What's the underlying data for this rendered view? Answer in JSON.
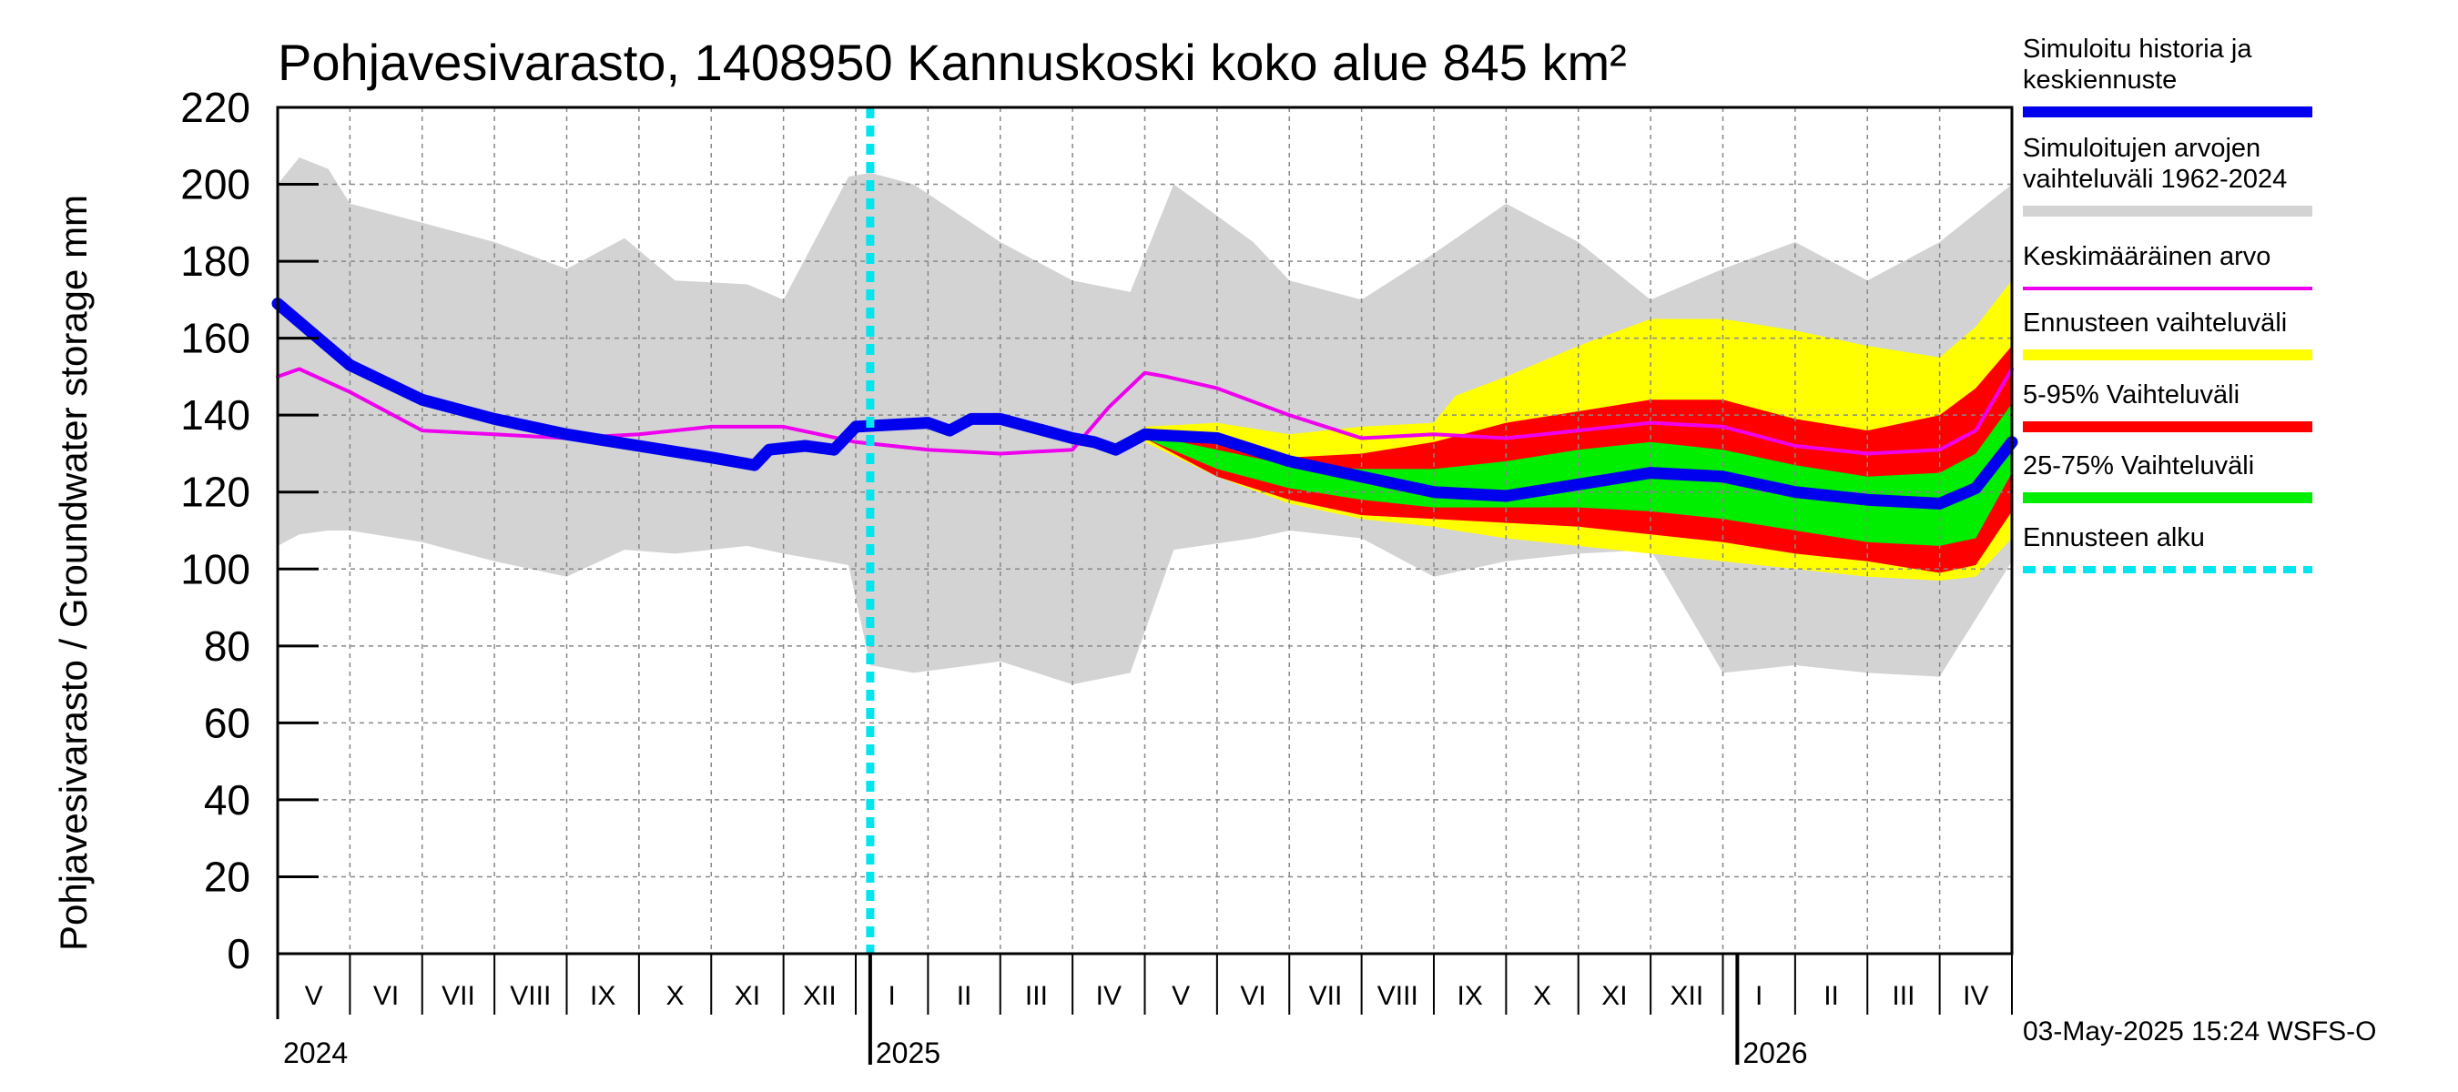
{
  "colors": {
    "history": "#0000ee",
    "range": "#d3d3d3",
    "mean": "#ee00ee",
    "forecast_range": "#ffff00",
    "p5_95": "#ff0000",
    "p25_75": "#00ee00",
    "forecast_start": "#00e5ee",
    "grid": "#888888"
  },
  "chart_data": {
    "type": "area",
    "title": "Pohjavesivarasto, 1408950 Kannuskoski koko alue 845 km²",
    "ylabel": "Pohjavesivarasto / Groundwater storage   mm",
    "ylim": [
      0,
      220
    ],
    "yticks": [
      0,
      20,
      40,
      60,
      80,
      100,
      120,
      140,
      160,
      180,
      200,
      220
    ],
    "x_unit": "months since 2024-04-26",
    "xlim": [
      0,
      24
    ],
    "forecast_start": 8.2,
    "month_labels": [
      "V",
      "VI",
      "VII",
      "VIII",
      "IX",
      "X",
      "XI",
      "XII",
      "I",
      "II",
      "III",
      "IV",
      "V",
      "VI",
      "VII",
      "VIII",
      "IX",
      "X",
      "XI",
      "XII",
      "I",
      "II",
      "III",
      "IV"
    ],
    "year_labels": [
      {
        "label": "2024",
        "x": 0
      },
      {
        "label": "2025",
        "x": 8.2
      },
      {
        "label": "2026",
        "x": 20.2
      }
    ],
    "series": [
      {
        "name": "Simuloitujen arvojen vaihteluväli 1962-2024",
        "kind": "band",
        "x": [
          0,
          0.3,
          0.7,
          1.0,
          2.0,
          3.0,
          4.0,
          4.8,
          5.5,
          6.5,
          7.0,
          7.9,
          8.2,
          8.8,
          10.0,
          11.0,
          11.8,
          12.4,
          13.5,
          14.0,
          15.0,
          16.0,
          17.0,
          18.0,
          19.0,
          20.0,
          21.0,
          22.0,
          23.0,
          24.0
        ],
        "upper": [
          200,
          207,
          204,
          195,
          190,
          185,
          178,
          186,
          175,
          174,
          170,
          202,
          203,
          200,
          185,
          175,
          172,
          200,
          185,
          175,
          170,
          182,
          195,
          185,
          170,
          178,
          185,
          175,
          185,
          200
        ],
        "lower": [
          106,
          109,
          110,
          110,
          107,
          102,
          98,
          105,
          104,
          106,
          104,
          101,
          75,
          73,
          76,
          70,
          73,
          105,
          108,
          110,
          108,
          98,
          102,
          104,
          105,
          73,
          75,
          73,
          72,
          102
        ]
      },
      {
        "name": "Ennusteen vaihteluväli",
        "kind": "band",
        "x": [
          12.0,
          13.0,
          14.0,
          15.0,
          16.0,
          16.3,
          17.0,
          18.0,
          19.0,
          20.0,
          21.0,
          22.0,
          23.0,
          23.5,
          24.0
        ],
        "upper": [
          137,
          138,
          135,
          137,
          138,
          145,
          150,
          158,
          165,
          165,
          162,
          158,
          155,
          163,
          175
        ],
        "lower": [
          133,
          124,
          117,
          113,
          111,
          110,
          108,
          106,
          104,
          102,
          100,
          98,
          97,
          98,
          108
        ]
      },
      {
        "name": "5-95% Vaihteluväli",
        "kind": "band",
        "x": [
          12.0,
          13.0,
          14.0,
          15.0,
          16.0,
          17.0,
          18.0,
          19.0,
          20.0,
          21.0,
          22.0,
          23.0,
          23.5,
          24.0
        ],
        "upper": [
          136,
          133,
          129,
          130,
          133,
          138,
          141,
          144,
          144,
          139,
          136,
          140,
          147,
          158
        ],
        "lower": [
          134,
          124,
          118,
          114,
          113,
          112,
          111,
          109,
          107,
          104,
          102,
          99,
          101,
          115
        ]
      },
      {
        "name": "25-75% Vaihteluväli",
        "kind": "band",
        "x": [
          12.0,
          13.0,
          14.0,
          15.0,
          16.0,
          17.0,
          18.0,
          19.0,
          20.0,
          21.0,
          22.0,
          23.0,
          23.5,
          24.0
        ],
        "upper": [
          135,
          131,
          127,
          126,
          126,
          128,
          131,
          133,
          131,
          127,
          124,
          125,
          130,
          143
        ],
        "lower": [
          134,
          126,
          121,
          118,
          116,
          116,
          116,
          115,
          113,
          110,
          107,
          106,
          108,
          125
        ]
      },
      {
        "name": "Keskimääräinen arvo",
        "kind": "line",
        "x": [
          0,
          0.3,
          1.0,
          2.0,
          3.0,
          4.0,
          5.0,
          6.0,
          7.0,
          8.0,
          9.0,
          10.0,
          11.0,
          11.5,
          12.0,
          12.3,
          13.0,
          14.0,
          15.0,
          16.0,
          17.0,
          18.0,
          19.0,
          20.0,
          21.0,
          22.0,
          23.0,
          23.5,
          24.0
        ],
        "y": [
          150,
          152,
          146,
          136,
          135,
          134,
          135,
          137,
          137,
          133,
          131,
          130,
          131,
          142,
          151,
          150,
          147,
          140,
          134,
          135,
          134,
          136,
          138,
          137,
          132,
          130,
          131,
          136,
          152
        ]
      },
      {
        "name": "Simuloitu historia ja keskiennuste",
        "kind": "line",
        "x": [
          0,
          0.5,
          1.0,
          2.0,
          3.0,
          4.0,
          5.0,
          6.0,
          6.6,
          6.8,
          7.3,
          7.7,
          8.0,
          9.0,
          9.3,
          9.6,
          10.0,
          11.0,
          11.3,
          11.6,
          12.0,
          13.0,
          14.0,
          15.0,
          16.0,
          17.0,
          18.0,
          19.0,
          20.0,
          21.0,
          22.0,
          23.0,
          23.5,
          24.0
        ],
        "y": [
          169,
          161,
          153,
          144,
          139,
          135,
          132,
          129,
          127,
          131,
          132,
          131,
          137,
          138,
          136,
          139,
          139,
          134,
          133,
          131,
          135,
          134,
          128,
          124,
          120,
          119,
          122,
          125,
          124,
          120,
          118,
          117,
          121,
          133
        ]
      }
    ],
    "legend": [
      {
        "label": "Simuloitu historia ja keskiennuste",
        "color": "#0000ee",
        "style": "thick"
      },
      {
        "label": "Simuloitujen arvojen vaihteluväli 1962-2024",
        "color": "#d3d3d3",
        "style": "thick"
      },
      {
        "label": "Keskimääräinen arvo",
        "color": "#ee00ee",
        "style": "thin"
      },
      {
        "label": "Ennusteen vaihteluväli",
        "color": "#ffff00",
        "style": "thick"
      },
      {
        "label": "5-95% Vaihteluväli",
        "color": "#ff0000",
        "style": "thick"
      },
      {
        "label": "25-75% Vaihteluväli",
        "color": "#00ee00",
        "style": "thick"
      },
      {
        "label": "Ennusteen alku",
        "color": "#00e5ee",
        "style": "dashed"
      }
    ],
    "legend_position": "right",
    "timestamp": "03-May-2025 15:24 WSFS-O"
  }
}
